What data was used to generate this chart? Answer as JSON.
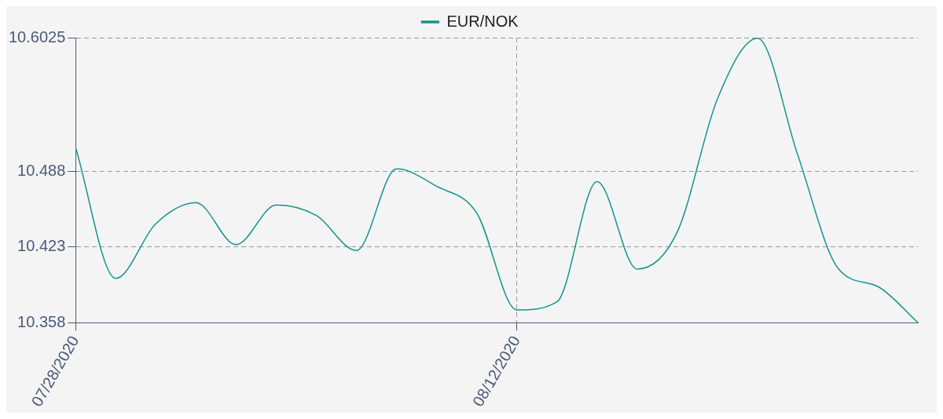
{
  "chart_data": {
    "type": "line",
    "categories": [
      "07/28/2020",
      null,
      null,
      null,
      null,
      null,
      null,
      null,
      null,
      null,
      null,
      "08/12/2020",
      null,
      null,
      null,
      null,
      null,
      null,
      null,
      null,
      null,
      null
    ],
    "series": [
      {
        "name": "EUR/NOK",
        "color": "#13968a",
        "values": [
          10.508,
          10.396,
          10.443,
          10.461,
          10.425,
          10.459,
          10.45,
          10.42,
          10.49,
          10.475,
          10.452,
          10.369,
          10.376,
          10.479,
          10.404,
          10.436,
          10.55,
          10.602,
          10.502,
          10.405,
          10.389,
          10.358
        ]
      }
    ],
    "ylim": [
      10.358,
      10.6025
    ],
    "yticks": [
      10.358,
      10.423,
      10.488,
      10.6025
    ],
    "grid": true,
    "legend": "top",
    "marker": "none",
    "line_style": "solid"
  }
}
